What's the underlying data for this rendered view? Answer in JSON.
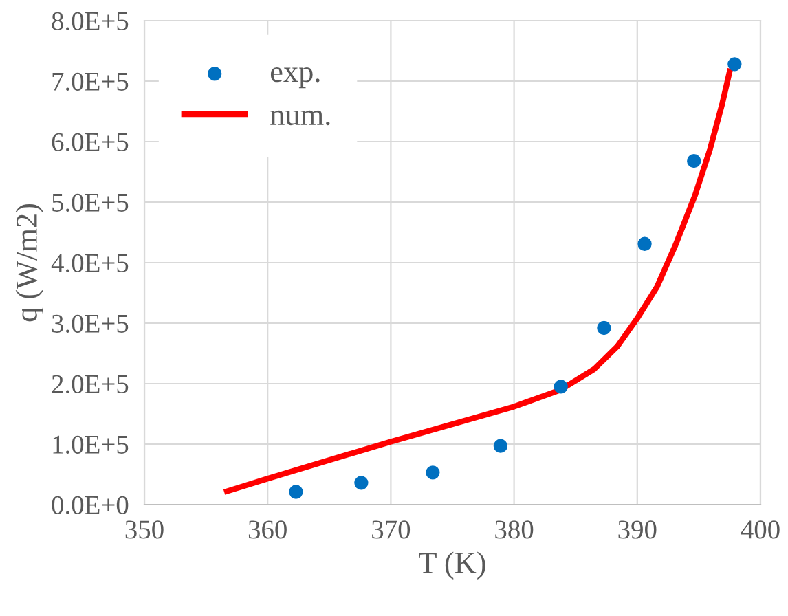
{
  "chart_data": {
    "type": "scatter",
    "xlabel": "T (K)",
    "ylabel": "q (W/m2)",
    "xlim": [
      350,
      400
    ],
    "xticks": [
      350,
      360,
      370,
      380,
      390,
      400
    ],
    "ylim": [
      0,
      800000
    ],
    "yticks": [
      {
        "value": 0,
        "label": "0.0E+0"
      },
      {
        "value": 100000,
        "label": "1.0E+5"
      },
      {
        "value": 200000,
        "label": "2.0E+5"
      },
      {
        "value": 300000,
        "label": "3.0E+5"
      },
      {
        "value": 400000,
        "label": "4.0E+5"
      },
      {
        "value": 500000,
        "label": "5.0E+5"
      },
      {
        "value": 600000,
        "label": "6.0E+5"
      },
      {
        "value": 700000,
        "label": "7.0E+5"
      },
      {
        "value": 800000,
        "label": "8.0E+5"
      }
    ],
    "grid": true,
    "legend": "top left",
    "series": [
      {
        "name": "exp.",
        "marker": "circle",
        "color": "#0070c0",
        "x": [
          362.3,
          367.6,
          373.4,
          378.9,
          383.8,
          387.3,
          390.6,
          394.6,
          397.9
        ],
        "values": [
          21000,
          36000,
          53000,
          97000,
          195000,
          292000,
          431000,
          568000,
          728000
        ]
      },
      {
        "name": "num.",
        "type": "line",
        "marker": "none",
        "line_style": "solid",
        "color": "#ff0000",
        "x": [
          356.7,
          360,
          370,
          380,
          383.8,
          386.5,
          388.4,
          390,
          391.6,
          393.1,
          394.7,
          395.9,
          396.9,
          397.5
        ],
        "values": [
          22000,
          43000,
          104000,
          162000,
          190000,
          224000,
          262000,
          308000,
          360000,
          429000,
          512000,
          587000,
          663000,
          716000
        ]
      }
    ]
  }
}
